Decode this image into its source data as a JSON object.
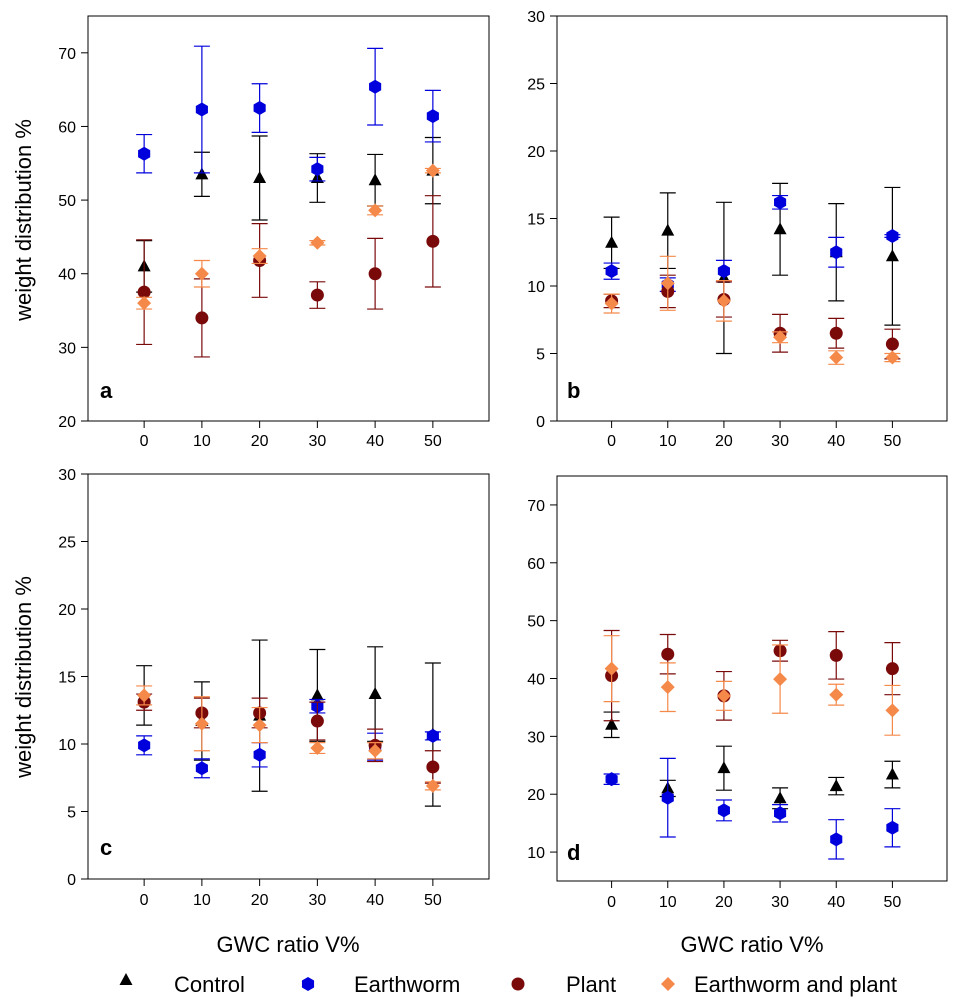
{
  "legend": {
    "entries": [
      {
        "key": "control",
        "label": "Control",
        "marker": "triangle",
        "color": "#000000"
      },
      {
        "key": "earthworm",
        "label": "Earthworm",
        "marker": "hexagon",
        "color": "#0000dd"
      },
      {
        "key": "plant",
        "label": "Plant",
        "marker": "circle",
        "color": "#7a0a0a"
      },
      {
        "key": "earthworm_plant",
        "label": "Earthworm and plant",
        "marker": "diamond",
        "color": "#f5894a"
      }
    ]
  },
  "chart_data": [
    {
      "panel": "a",
      "type": "scatter",
      "ylim": [
        20,
        75
      ],
      "yticks": [
        20,
        30,
        40,
        50,
        60,
        70
      ],
      "ylabel": "weight distribution %",
      "xlabel": "",
      "x": [
        0,
        10,
        20,
        30,
        40,
        50
      ],
      "error_bars": true,
      "series": [
        {
          "name": "Control",
          "values": [
            41,
            53.5,
            53,
            53,
            52.7,
            54
          ],
          "errors": [
            3.5,
            3,
            5.7,
            3.3,
            3.5,
            4.5
          ]
        },
        {
          "name": "Earthworm",
          "values": [
            56.3,
            62.3,
            62.5,
            54.2,
            65.4,
            61.4
          ],
          "errors": [
            2.6,
            8.6,
            3.3,
            1.6,
            5.2,
            3.5
          ]
        },
        {
          "name": "Plant",
          "values": [
            37.5,
            34,
            41.8,
            37.1,
            40,
            44.4
          ],
          "errors": [
            7.1,
            5.3,
            5,
            1.8,
            4.8,
            6.2
          ]
        },
        {
          "name": "Earthworm and plant",
          "values": [
            36,
            40,
            42.4,
            44.2,
            48.6,
            54
          ],
          "errors": [
            0.8,
            1.8,
            1,
            0.3,
            0.6,
            0.3
          ]
        }
      ]
    },
    {
      "panel": "b",
      "type": "scatter",
      "ylim": [
        0,
        30
      ],
      "yticks": [
        0,
        5,
        10,
        15,
        20,
        25,
        30
      ],
      "ylabel": "",
      "xlabel": "",
      "x": [
        0,
        10,
        20,
        30,
        40,
        50
      ],
      "error_bars": true,
      "series": [
        {
          "name": "Control",
          "values": [
            13.2,
            14.1,
            10.6,
            14.2,
            12.5,
            12.2
          ],
          "errors": [
            1.9,
            2.8,
            5.6,
            3.4,
            3.6,
            5.1
          ]
        },
        {
          "name": "Earthworm",
          "values": [
            11.1,
            10.1,
            11.1,
            16.2,
            12.5,
            13.7
          ],
          "errors": [
            0.6,
            0.5,
            0.8,
            0.5,
            1.1,
            0.1
          ]
        },
        {
          "name": "Plant",
          "values": [
            8.9,
            9.6,
            9,
            6.5,
            6.5,
            5.7
          ],
          "errors": [
            0.5,
            1.2,
            1.3,
            1.4,
            1.1,
            1.1
          ]
        },
        {
          "name": "Earthworm and plant",
          "values": [
            8.7,
            10.2,
            8.9,
            6.2,
            4.7,
            4.7
          ],
          "errors": [
            0.7,
            2,
            1.5,
            0.4,
            0.5,
            0.3
          ]
        }
      ]
    },
    {
      "panel": "c",
      "type": "scatter",
      "ylim": [
        0,
        30
      ],
      "yticks": [
        0,
        5,
        10,
        15,
        20,
        25,
        30
      ],
      "ylabel": "weight distribution %",
      "xlabel": "GWC  ratio V%",
      "x": [
        0,
        10,
        20,
        30,
        40,
        50
      ],
      "error_bars": true,
      "series": [
        {
          "name": "Control",
          "values": [
            13.6,
            11.7,
            12.1,
            13.6,
            13.7,
            10.7
          ],
          "errors": [
            2.2,
            2.9,
            5.6,
            3.4,
            3.5,
            5.3
          ]
        },
        {
          "name": "Earthworm",
          "values": [
            9.9,
            8.2,
            9.2,
            12.8,
            9.8,
            10.6
          ],
          "errors": [
            0.7,
            0.7,
            0.9,
            0.5,
            1,
            0.3
          ]
        },
        {
          "name": "Plant",
          "values": [
            13.1,
            12.3,
            12.3,
            11.7,
            9.9,
            8.3
          ],
          "errors": [
            0.6,
            1.1,
            1.1,
            1.4,
            1.2,
            1.2
          ]
        },
        {
          "name": "Earthworm and plant",
          "values": [
            13.6,
            11.5,
            11.4,
            9.7,
            9.5,
            6.9
          ],
          "errors": [
            0.7,
            2,
            1.3,
            0.4,
            0.6,
            0.3
          ]
        }
      ]
    },
    {
      "panel": "d",
      "type": "scatter",
      "ylim": [
        5,
        75
      ],
      "yticks": [
        10,
        20,
        30,
        40,
        50,
        60,
        70
      ],
      "ylabel": "",
      "xlabel": "GWC ratio V%",
      "x": [
        0,
        10,
        20,
        30,
        40,
        50
      ],
      "error_bars": true,
      "series": [
        {
          "name": "Control",
          "values": [
            32,
            21,
            24.5,
            19.3,
            21.4,
            23.4
          ],
          "errors": [
            2.2,
            1.4,
            3.8,
            1.8,
            1.5,
            2.3
          ]
        },
        {
          "name": "Earthworm",
          "values": [
            22.6,
            19.4,
            17.2,
            16.7,
            12.2,
            14.2
          ],
          "errors": [
            0.9,
            6.8,
            1.8,
            1.5,
            3.4,
            3.3
          ]
        },
        {
          "name": "Plant",
          "values": [
            40.5,
            44.2,
            37,
            44.8,
            44,
            41.7
          ],
          "errors": [
            7.8,
            3.4,
            4.2,
            1.8,
            4.1,
            4.5
          ]
        },
        {
          "name": "Earthworm and plant",
          "values": [
            41.7,
            38.5,
            37,
            39.9,
            37.2,
            34.5
          ],
          "errors": [
            5.7,
            4.2,
            2.5,
            5.9,
            1.8,
            4.3
          ]
        }
      ]
    }
  ]
}
